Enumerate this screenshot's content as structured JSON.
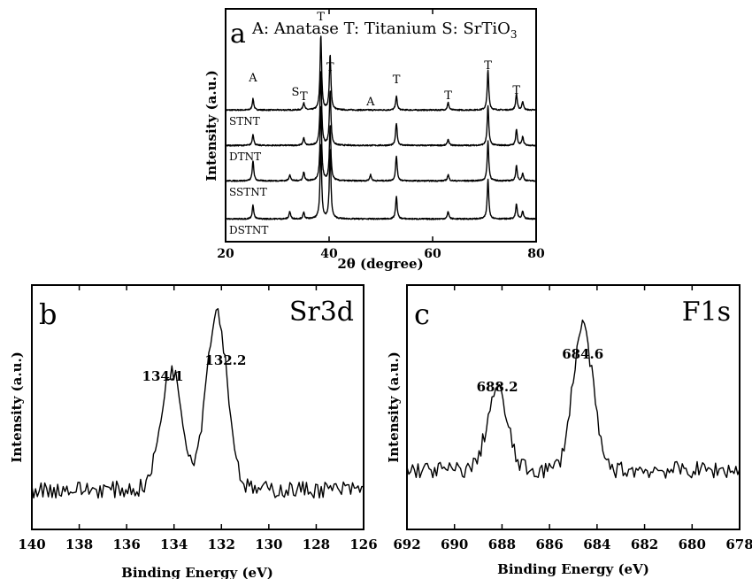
{
  "chart_data": [
    {
      "panel": "a",
      "type": "line",
      "title": "A: Anatase   T: Titanium   S: SrTiO",
      "title_sub": "3",
      "xlabel": "2θ (degree)",
      "ylabel": "Intensity (a.u.)",
      "xlim": [
        20,
        80
      ],
      "xticks": [
        20,
        40,
        60,
        80
      ],
      "series": [
        {
          "name": "STNT",
          "peaks": [
            [
              25.3,
              0.45
            ],
            [
              35.1,
              0.3
            ],
            [
              38.4,
              3.0
            ],
            [
              40.2,
              2.2
            ],
            [
              53.0,
              0.55
            ],
            [
              63.0,
              0.3
            ],
            [
              70.7,
              1.6
            ],
            [
              76.2,
              0.65
            ],
            [
              77.4,
              0.35
            ]
          ]
        },
        {
          "name": "DTNT",
          "peaks": [
            [
              25.3,
              0.45
            ],
            [
              35.1,
              0.3
            ],
            [
              38.4,
              3.0
            ],
            [
              40.2,
              2.2
            ],
            [
              53.0,
              0.9
            ],
            [
              63.0,
              0.25
            ],
            [
              70.7,
              1.6
            ],
            [
              76.2,
              0.65
            ],
            [
              77.4,
              0.35
            ]
          ]
        },
        {
          "name": "SSTNT",
          "peaks": [
            [
              25.3,
              0.8
            ],
            [
              32.4,
              0.25
            ],
            [
              35.1,
              0.35
            ],
            [
              38.4,
              3.0
            ],
            [
              40.2,
              2.2
            ],
            [
              48.0,
              0.25
            ],
            [
              53.0,
              1.0
            ],
            [
              63.0,
              0.25
            ],
            [
              70.7,
              1.6
            ],
            [
              76.2,
              0.6
            ],
            [
              77.4,
              0.3
            ]
          ]
        },
        {
          "name": "DSTNT",
          "peaks": [
            [
              25.3,
              0.55
            ],
            [
              32.4,
              0.3
            ],
            [
              35.1,
              0.25
            ],
            [
              38.4,
              3.0
            ],
            [
              40.2,
              2.8
            ],
            [
              53.0,
              0.9
            ],
            [
              63.0,
              0.3
            ],
            [
              70.7,
              1.6
            ],
            [
              76.2,
              0.6
            ],
            [
              77.4,
              0.3
            ]
          ]
        }
      ],
      "annotations": [
        {
          "text": "A",
          "x": 25.3
        },
        {
          "text": "S",
          "x": 33.5
        },
        {
          "text": "T",
          "x": 35.1
        },
        {
          "text": "T",
          "x": 38.4
        },
        {
          "text": "T",
          "x": 40.2
        },
        {
          "text": "A",
          "x": 48.0
        },
        {
          "text": "T",
          "x": 53.0
        },
        {
          "text": "T",
          "x": 63.0
        },
        {
          "text": "T",
          "x": 70.7
        },
        {
          "text": "T",
          "x": 76.2
        }
      ]
    },
    {
      "panel": "b",
      "type": "line",
      "title": "Sr3d",
      "xlabel": "Binding Energy (eV)",
      "ylabel": "Intensity (a.u.)",
      "xlim": [
        140,
        126
      ],
      "xticks": [
        140,
        138,
        136,
        134,
        132,
        130,
        128,
        126
      ],
      "peaks": [
        [
          134.1,
          0.49
        ],
        [
          132.2,
          0.73
        ]
      ],
      "annotations": [
        {
          "text": "134.1",
          "x": 134.1
        },
        {
          "text": "132.2",
          "x": 132.2
        }
      ]
    },
    {
      "panel": "c",
      "type": "line",
      "title": "F1s",
      "xlabel": "Binding Energy (eV)",
      "ylabel": "Intensity (a.u.)",
      "xlim": [
        692,
        678
      ],
      "xticks": [
        692,
        690,
        688,
        686,
        684,
        682,
        680,
        678
      ],
      "peaks": [
        [
          688.2,
          0.33
        ],
        [
          684.6,
          0.59
        ]
      ],
      "annotations": [
        {
          "text": "688.2",
          "x": 688.2
        },
        {
          "text": "684.6",
          "x": 684.6
        }
      ]
    }
  ],
  "labels": {
    "a": "a",
    "b": "b",
    "c": "c"
  }
}
